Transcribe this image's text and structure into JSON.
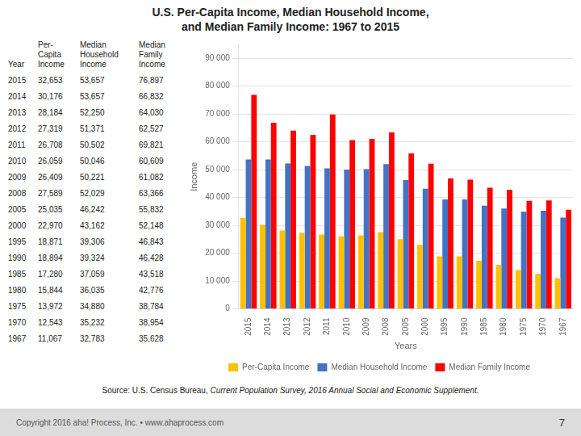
{
  "chart_data": {
    "type": "bar",
    "title": "U.S. Per-Capita Income, Median Household Income,\nand Median Family Income: 1967 to 2015",
    "categories": [
      "2015",
      "2014",
      "2013",
      "2012",
      "2011",
      "2010",
      "2009",
      "2008",
      "2005",
      "2000",
      "1995",
      "1990",
      "1985",
      "1980",
      "1975",
      "1970",
      "1967"
    ],
    "series": [
      {
        "name": "Per-Capita Income",
        "color": "#FFC000",
        "values": [
          32653,
          30176,
          28184,
          27319,
          26708,
          26059,
          26409,
          27589,
          25035,
          22970,
          18871,
          18894,
          17280,
          15844,
          13972,
          12543,
          11067
        ]
      },
      {
        "name": "Median Household Income",
        "color": "#4472C4",
        "values": [
          53657,
          53657,
          52250,
          51371,
          50502,
          50046,
          50221,
          52029,
          46242,
          43162,
          39306,
          39324,
          37059,
          36035,
          34880,
          35232,
          32783
        ]
      },
      {
        "name": "Median Family Income",
        "color": "#FF0000",
        "values": [
          76897,
          66832,
          64030,
          62527,
          69821,
          60609,
          61082,
          63366,
          55832,
          52148,
          46843,
          46428,
          43518,
          42776,
          38784,
          38954,
          35628
        ]
      }
    ],
    "xlabel": "Years",
    "ylabel": "Income",
    "ylim": [
      0,
      95000
    ],
    "yticks": [
      0,
      {
        "value": 10000,
        "label": "10 000"
      },
      {
        "value": 20000,
        "label": "20 000"
      },
      {
        "value": 30000,
        "label": "30 000"
      },
      {
        "value": 40000,
        "label": "40 000"
      },
      {
        "value": 50000,
        "label": "50 000"
      },
      {
        "value": 60000,
        "label": "60 000"
      },
      {
        "value": 70000,
        "label": "70 000"
      },
      {
        "value": 80000,
        "label": "80 000"
      },
      {
        "value": 90000,
        "label": "90 000"
      }
    ],
    "grid": true,
    "legend": "bottom"
  },
  "table": {
    "header": [
      "Year",
      "Per-\nCapita\nIncome",
      "Median\nHousehold\nIncome",
      "Median\nFamily\nIncome"
    ],
    "rows": [
      [
        2015,
        "32,653",
        "53,657",
        "76,897"
      ],
      [
        2014,
        "30,176",
        "53,657",
        "66,832"
      ],
      [
        2013,
        "28,184",
        "52,250",
        "64,030"
      ],
      [
        2012,
        "27,319",
        "51,371",
        "62,527"
      ],
      [
        2011,
        "26,708",
        "50,502",
        "69,821"
      ],
      [
        2010,
        "26,059",
        "50,046",
        "60,609"
      ],
      [
        2009,
        "26,409",
        "50,221",
        "61,082"
      ],
      [
        2008,
        "27,589",
        "52,029",
        "63,366"
      ],
      [
        2005,
        "25,035",
        "46,242",
        "55,832"
      ],
      [
        2000,
        "22,970",
        "43,162",
        "52,148"
      ],
      [
        1995,
        "18,871",
        "39,306",
        "46,843"
      ],
      [
        1990,
        "18,894",
        "39,324",
        "46,428"
      ],
      [
        1985,
        "17,280",
        "37,059",
        "43,518"
      ],
      [
        1980,
        "15,844",
        "36,035",
        "42,776"
      ],
      [
        1975,
        "13,972",
        "34,880",
        "38,784"
      ],
      [
        1970,
        "12,543",
        "35,232",
        "38,954"
      ],
      [
        1967,
        "11,067",
        "32,783",
        "35,628"
      ]
    ]
  },
  "source": [
    "Source: U.S. Census Bureau, ",
    "Current Population Survey, 2016 Annual Social and Economic Supplement."
  ],
  "footer": "Copyright 2016 aha! Process, Inc.  •  www.ahaprocess.com",
  "page_number": "7"
}
